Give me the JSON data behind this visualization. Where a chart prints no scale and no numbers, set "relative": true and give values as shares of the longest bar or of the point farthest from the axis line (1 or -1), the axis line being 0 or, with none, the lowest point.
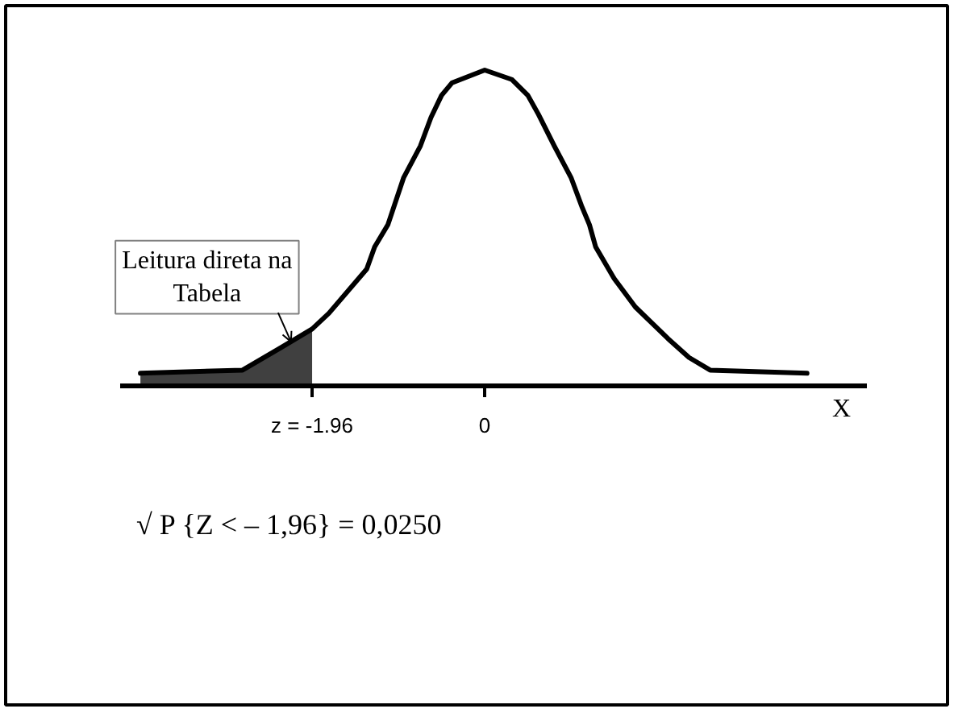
{
  "chart_data": {
    "type": "line",
    "relative": true,
    "xlabel": "X",
    "xlim": [
      -4.14,
      4.34
    ],
    "xticks": [
      {
        "value": -1.96,
        "label": "z = -1.96"
      },
      0
    ],
    "series": [
      {
        "type": "area",
        "color": "#404040",
        "x": [
          -3.91,
          -2.75,
          -2.32,
          -1.96
        ],
        "values": [
          0.04,
          0.05,
          0.12,
          0.18
        ]
      },
      {
        "color": "#000000",
        "x": [
          -3.91,
          -2.75,
          -2.32,
          -1.96,
          -1.77,
          -1.34,
          -1.25,
          -1.1,
          -0.92,
          -0.73,
          -0.61,
          -0.49,
          -0.37,
          0,
          0.31,
          0.49,
          0.61,
          0.79,
          0.98,
          1.1,
          1.19,
          1.26,
          1.47,
          1.71,
          2.08,
          2.32,
          2.56,
          3.66
        ],
        "values": [
          0.04,
          0.05,
          0.12,
          0.18,
          0.23,
          0.37,
          0.44,
          0.51,
          0.66,
          0.76,
          0.85,
          0.92,
          0.96,
          1,
          0.97,
          0.92,
          0.86,
          0.76,
          0.66,
          0.57,
          0.51,
          0.44,
          0.34,
          0.25,
          0.15,
          0.09,
          0.05,
          0.04
        ]
      }
    ],
    "annotations": [
      {
        "text": "Leitura direta na Tabela",
        "x": -2.2,
        "y": 0.14
      },
      "√ P {Z < – 1,96} = 0,0250"
    ]
  }
}
